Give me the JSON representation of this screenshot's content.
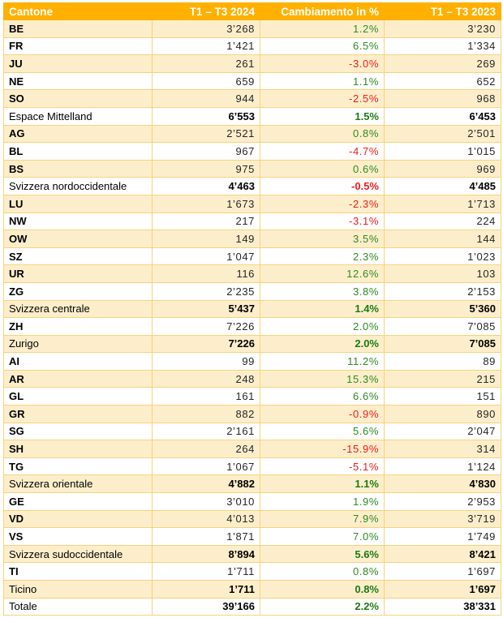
{
  "table": {
    "headers": [
      "Cantone",
      "T1 – T3 2024",
      "Cambiamento in %",
      "T1 – T3 2023"
    ],
    "colors": {
      "header_bg": "#ffb000",
      "stripe_bg": "#fdeecb",
      "border": "#f8d27c",
      "positive": "#2e8b22",
      "negative": "#ee1c1c"
    },
    "rows": [
      {
        "name": "BE",
        "y2024": "3’268",
        "change": "1.2%",
        "y2023": "3’230",
        "type": "canton"
      },
      {
        "name": "FR",
        "y2024": "1’421",
        "change": "6.5%",
        "y2023": "1’334",
        "type": "canton"
      },
      {
        "name": "JU",
        "y2024": "261",
        "change": "-3.0%",
        "y2023": "269",
        "type": "canton"
      },
      {
        "name": "NE",
        "y2024": "659",
        "change": "1.1%",
        "y2023": "652",
        "type": "canton"
      },
      {
        "name": "SO",
        "y2024": "944",
        "change": "-2.5%",
        "y2023": "968",
        "type": "canton"
      },
      {
        "name": "Espace Mittelland",
        "y2024": "6’553",
        "change": "1.5%",
        "y2023": "6’453",
        "type": "sub"
      },
      {
        "name": "AG",
        "y2024": "2’521",
        "change": "0.8%",
        "y2023": "2’501",
        "type": "canton"
      },
      {
        "name": "BL",
        "y2024": "967",
        "change": "-4.7%",
        "y2023": "1’015",
        "type": "canton"
      },
      {
        "name": "BS",
        "y2024": "975",
        "change": "0.6%",
        "y2023": "969",
        "type": "canton"
      },
      {
        "name": "Svizzera nordoccidentale",
        "y2024": "4’463",
        "change": "-0.5%",
        "y2023": "4’485",
        "type": "sub"
      },
      {
        "name": "LU",
        "y2024": "1’673",
        "change": "-2.3%",
        "y2023": "1’713",
        "type": "canton"
      },
      {
        "name": "NW",
        "y2024": "217",
        "change": "-3.1%",
        "y2023": "224",
        "type": "canton"
      },
      {
        "name": "OW",
        "y2024": "149",
        "change": "3.5%",
        "y2023": "144",
        "type": "canton"
      },
      {
        "name": "SZ",
        "y2024": "1’047",
        "change": "2.3%",
        "y2023": "1’023",
        "type": "canton"
      },
      {
        "name": "UR",
        "y2024": "116",
        "change": "12.6%",
        "y2023": "103",
        "type": "canton"
      },
      {
        "name": "ZG",
        "y2024": "2’235",
        "change": "3.8%",
        "y2023": "2’153",
        "type": "canton"
      },
      {
        "name": "Svizzera centrale",
        "y2024": "5’437",
        "change": "1.4%",
        "y2023": "5’360",
        "type": "sub"
      },
      {
        "name": "ZH",
        "y2024": "7’226",
        "change": "2.0%",
        "y2023": "7’085",
        "type": "canton"
      },
      {
        "name": "Zurigo",
        "y2024": "7’226",
        "change": "2.0%",
        "y2023": "7’085",
        "type": "sub"
      },
      {
        "name": "AI",
        "y2024": "99",
        "change": "11.2%",
        "y2023": "89",
        "type": "canton"
      },
      {
        "name": "AR",
        "y2024": "248",
        "change": "15.3%",
        "y2023": "215",
        "type": "canton"
      },
      {
        "name": "GL",
        "y2024": "161",
        "change": "6.6%",
        "y2023": "151",
        "type": "canton"
      },
      {
        "name": "GR",
        "y2024": "882",
        "change": "-0.9%",
        "y2023": "890",
        "type": "canton"
      },
      {
        "name": "SG",
        "y2024": "2’161",
        "change": "5.6%",
        "y2023": "2’047",
        "type": "canton"
      },
      {
        "name": "SH",
        "y2024": "264",
        "change": "-15.9%",
        "y2023": "314",
        "type": "canton"
      },
      {
        "name": "TG",
        "y2024": "1’067",
        "change": "-5.1%",
        "y2023": "1’124",
        "type": "canton"
      },
      {
        "name": "Svizzera orientale",
        "y2024": "4’882",
        "change": "1.1%",
        "y2023": "4’830",
        "type": "sub"
      },
      {
        "name": "GE",
        "y2024": "3’010",
        "change": "1.9%",
        "y2023": "2’953",
        "type": "canton"
      },
      {
        "name": "VD",
        "y2024": "4’013",
        "change": "7.9%",
        "y2023": "3’719",
        "type": "canton"
      },
      {
        "name": "VS",
        "y2024": "1’871",
        "change": "7.0%",
        "y2023": "1’749",
        "type": "canton"
      },
      {
        "name": "Svizzera sudoccidentale",
        "y2024": "8’894",
        "change": "5.6%",
        "y2023": "8’421",
        "type": "sub"
      },
      {
        "name": "TI",
        "y2024": "1’711",
        "change": "0.8%",
        "y2023": "1’697",
        "type": "canton"
      },
      {
        "name": "Ticino",
        "y2024": "1’711",
        "change": "0.8%",
        "y2023": "1’697",
        "type": "sub"
      },
      {
        "name": "Totale",
        "y2024": "39’166",
        "change": "2.2%",
        "y2023": "38’331",
        "type": "sub"
      }
    ]
  }
}
